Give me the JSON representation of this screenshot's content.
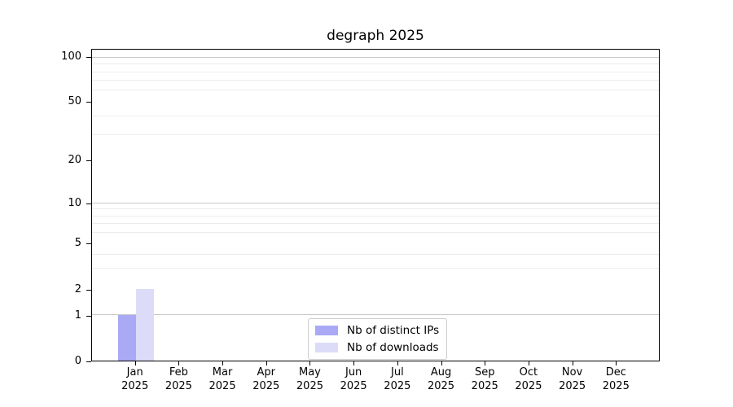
{
  "page": {
    "background": "#ffffff"
  },
  "chart_data": {
    "type": "bar",
    "title": "degraph 2025",
    "categories": [
      "Jan",
      "Feb",
      "Mar",
      "Apr",
      "May",
      "Jun",
      "Jul",
      "Aug",
      "Sep",
      "Oct",
      "Nov",
      "Dec"
    ],
    "category_year": "2025",
    "series": [
      {
        "name": "Nb of distinct IPs",
        "color": "#a9a9f6",
        "values": [
          1,
          0,
          0,
          0,
          0,
          0,
          0,
          0,
          0,
          0,
          0,
          0
        ]
      },
      {
        "name": "Nb of downloads",
        "color": "#dcdcf9",
        "values": [
          2,
          0,
          0,
          0,
          0,
          0,
          0,
          0,
          0,
          0,
          0,
          0
        ]
      }
    ],
    "xlabel": "",
    "ylabel": "",
    "yscale": "symlog",
    "ylim": [
      0,
      113
    ],
    "y_tick_labels": [
      0,
      1,
      2,
      5,
      10,
      20,
      50,
      100
    ],
    "y_major_gridlines": [
      1,
      10,
      100
    ],
    "y_minor_gridlines": [
      3,
      4,
      6,
      7,
      8,
      9,
      30,
      40,
      60,
      70,
      80,
      90
    ],
    "grid": true,
    "legend": {
      "entries": [
        "Nb of distinct IPs",
        "Nb of downloads"
      ],
      "position": "lower center"
    },
    "layout": {
      "grid_major_color": "#c9c9c9",
      "grid_minor_color": "#ececec",
      "spine_color": "#000000",
      "y_scale_anchors": [
        [
          0,
          0.0
        ],
        [
          1,
          0.1458
        ],
        [
          2,
          0.2292
        ],
        [
          5,
          0.3776
        ],
        [
          10,
          0.5052
        ],
        [
          20,
          0.6432
        ],
        [
          50,
          0.8307
        ],
        [
          100,
          0.974
        ]
      ]
    }
  }
}
